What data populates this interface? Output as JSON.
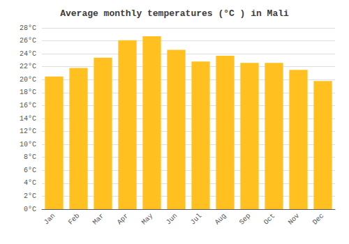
{
  "chart_data": {
    "type": "bar",
    "title": "Average monthly temperatures (°C ) in Mali",
    "categories": [
      "Jan",
      "Feb",
      "Mar",
      "Apr",
      "May",
      "Jun",
      "Jul",
      "Aug",
      "Sep",
      "Oct",
      "Nov",
      "Dec"
    ],
    "values": [
      20.5,
      21.8,
      23.4,
      26.1,
      26.7,
      24.6,
      22.8,
      23.7,
      22.6,
      22.6,
      21.5,
      19.8
    ],
    "color": "#FFC020",
    "ylim": [
      0,
      28
    ],
    "yticks": [
      {
        "value": 0,
        "label": "0°C"
      },
      {
        "value": 2,
        "label": "2°C"
      },
      {
        "value": 4,
        "label": "4°C"
      },
      {
        "value": 6,
        "label": "6°C"
      },
      {
        "value": 8,
        "label": "8°C"
      },
      {
        "value": 10,
        "label": "10°C"
      },
      {
        "value": 12,
        "label": "12°C"
      },
      {
        "value": 14,
        "label": "14°C"
      },
      {
        "value": 16,
        "label": "16°C"
      },
      {
        "value": 18,
        "label": "18°C"
      },
      {
        "value": 20,
        "label": "20°C"
      },
      {
        "value": 22,
        "label": "22°C"
      },
      {
        "value": 24,
        "label": "24°C"
      },
      {
        "value": 26,
        "label": "26°C"
      },
      {
        "value": 28,
        "label": "28°C"
      }
    ],
    "grid": true
  }
}
